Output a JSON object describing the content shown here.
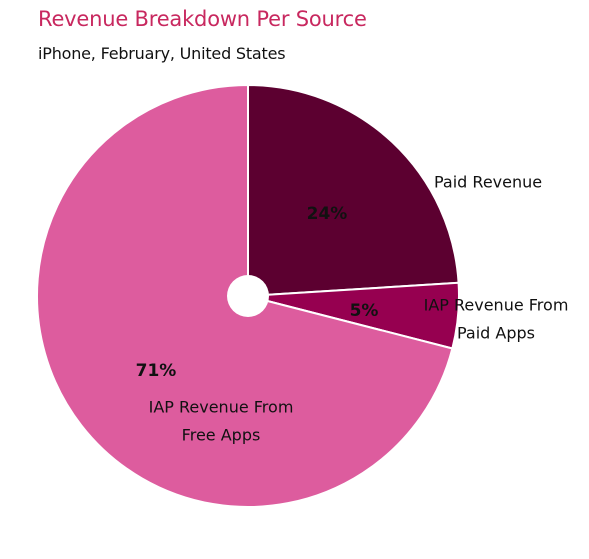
{
  "chart_data": {
    "type": "pie",
    "title": "Revenue Breakdown Per Source",
    "subtitle": "iPhone, February, United States",
    "slices": [
      {
        "label_lines": [
          "Paid Revenue"
        ],
        "value": 24,
        "pct_label": "24%",
        "color": "#5c0030"
      },
      {
        "label_lines": [
          "IAP Revenue From",
          "Paid Apps"
        ],
        "value": 5,
        "pct_label": "5%",
        "color": "#960050"
      },
      {
        "label_lines": [
          "IAP Revenue From",
          "Free Apps"
        ],
        "value": 71,
        "pct_label": "71%",
        "color": "#dd5c9e"
      }
    ],
    "colors": {
      "title": "#c8285f",
      "slice_border": "#ffffff",
      "center_hole": "#ffffff"
    }
  }
}
